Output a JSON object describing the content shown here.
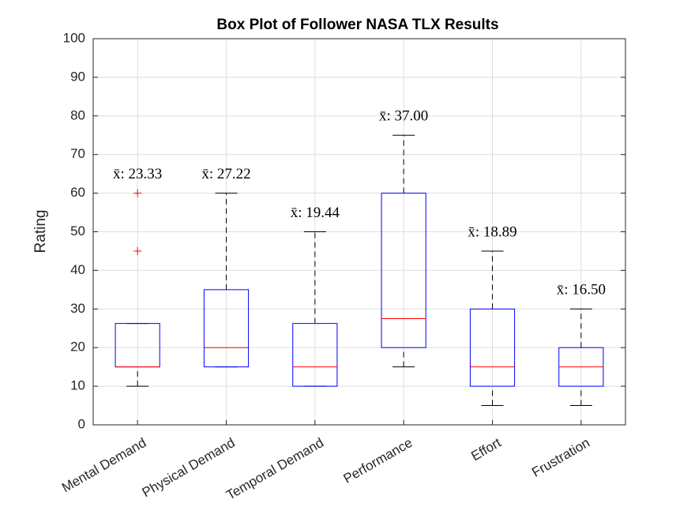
{
  "chart_data": {
    "type": "box",
    "title": "Box Plot of Follower NASA TLX Results",
    "y_label": "Rating",
    "categories": [
      "Mental Demand",
      "Physical Demand",
      "Temporal Demand",
      "Performance",
      "Effort",
      "Frustration"
    ],
    "boxes": [
      {
        "low": 10,
        "q1": 15,
        "median": 15,
        "q3": 26.25,
        "high": 26.25,
        "outliers": [
          45,
          60
        ]
      },
      {
        "low": 15,
        "q1": 15,
        "median": 20,
        "q3": 35,
        "high": 60,
        "outliers": []
      },
      {
        "low": 10,
        "q1": 10,
        "median": 15,
        "q3": 26.25,
        "high": 50,
        "outliers": []
      },
      {
        "low": 15,
        "q1": 20,
        "median": 27.5,
        "q3": 60,
        "high": 75,
        "outliers": []
      },
      {
        "low": 5,
        "q1": 10,
        "median": 15,
        "q3": 30,
        "high": 45,
        "outliers": []
      },
      {
        "low": 5,
        "q1": 10,
        "median": 15,
        "q3": 20,
        "high": 30,
        "outliers": []
      }
    ],
    "mean_labels": [
      "x̄: 23.33",
      "x̄: 27.22",
      "x̄: 19.44",
      "x̄: 37.00",
      "x̄: 18.89",
      "x̄: 16.50"
    ],
    "box_color": "#0000ff",
    "median_color": "#ff0000",
    "whisker_color": "#000000",
    "outlier_color": "#ff0000",
    "ylim": [
      0,
      100
    ],
    "yticks": [
      0,
      10,
      20,
      30,
      40,
      50,
      60,
      70,
      80,
      90,
      100
    ],
    "grid": true
  }
}
